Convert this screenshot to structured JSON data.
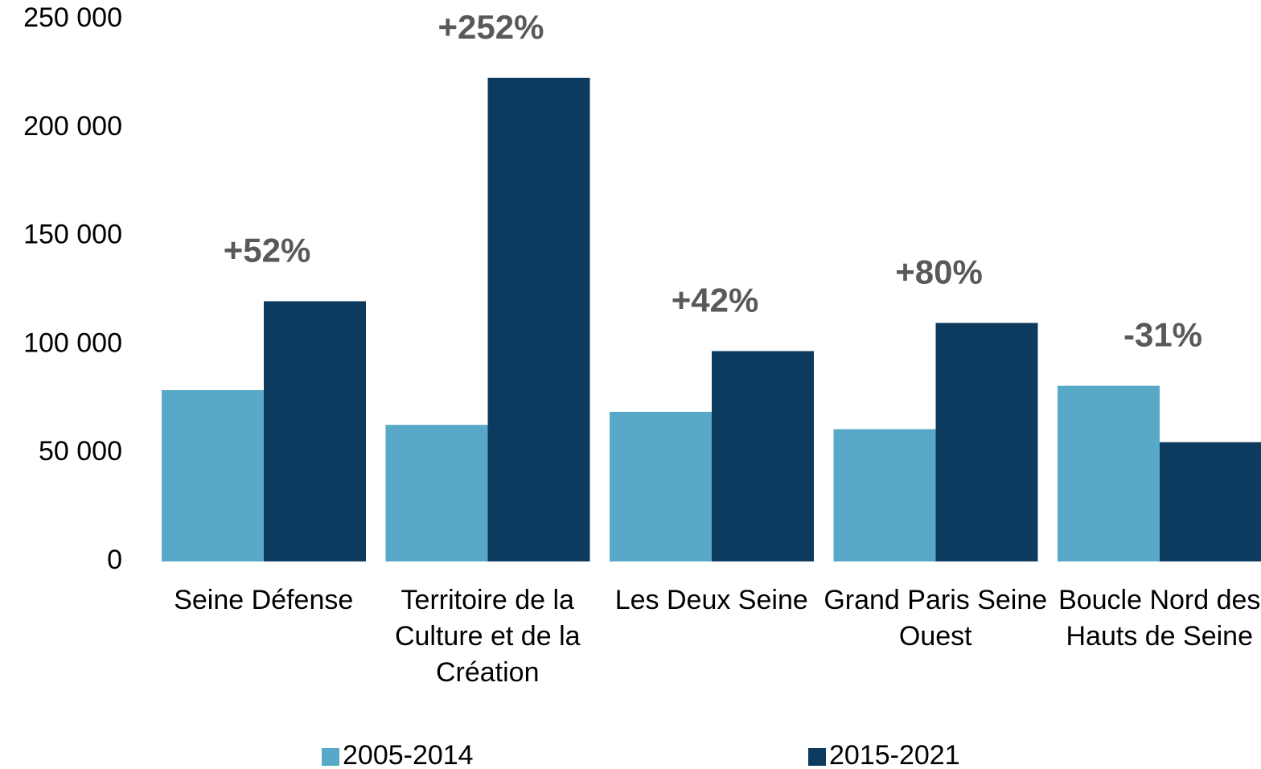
{
  "chart_data": {
    "type": "bar",
    "categories": [
      "Seine Défense",
      "Territoire de la Culture et de la Création",
      "Les Deux Seine",
      "Grand Paris Seine Ouest",
      "Boucle Nord des Hauts de Seine"
    ],
    "series": [
      {
        "name": "2005-2014",
        "color": "#58a9c7",
        "values": [
          79000,
          63000,
          69000,
          61000,
          81000
        ]
      },
      {
        "name": "2015-2021",
        "color": "#0d3b60",
        "values": [
          120000,
          223000,
          97000,
          110000,
          55000
        ]
      }
    ],
    "annotations": [
      "+52%",
      "+252%",
      "+42%",
      "+80%",
      "-31%"
    ],
    "ylim": [
      0,
      250000
    ],
    "yticks": [
      0,
      {
        "value": 50000,
        "label": "50 000"
      },
      {
        "value": 100000,
        "label": "100 000"
      },
      {
        "value": 150000,
        "label": "150 000"
      },
      {
        "value": 200000,
        "label": "200 000"
      },
      {
        "value": 250000,
        "label": "250 000"
      }
    ],
    "grid": false,
    "legend": "bottom"
  }
}
